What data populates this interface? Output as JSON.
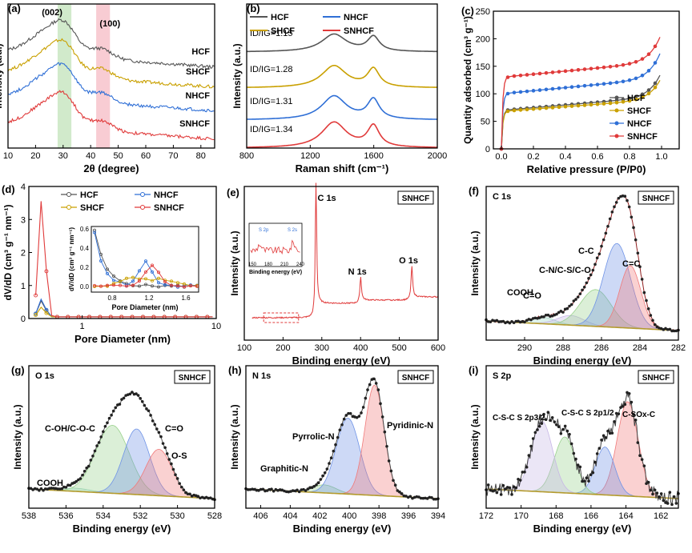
{
  "colors": {
    "HCF": "#555555",
    "NHCF": "#2f6fd6",
    "SHCF": "#c9a000",
    "SNHCF": "#e03a3a",
    "green": "#98d18b",
    "pink": "#f19aa8",
    "axis": "#000000"
  },
  "chart_data": [
    {
      "id": "a",
      "type": "line",
      "label": "(a)",
      "xlabel": "2θ (degree)",
      "ylabel": "Intensity (a.u.)",
      "xlim": [
        10,
        85
      ],
      "xticks": [
        "10",
        "20",
        "30",
        "40",
        "50",
        "60",
        "70",
        "80"
      ],
      "series": [
        {
          "name": "HCF"
        },
        {
          "name": "SHCF"
        },
        {
          "name": "NHCF"
        },
        {
          "name": "SNHCF"
        }
      ],
      "annotations": [
        "(002)",
        "(100)"
      ]
    },
    {
      "id": "b",
      "type": "line",
      "label": "(b)",
      "xlabel": "Raman shift (cm⁻¹)",
      "ylabel": "Intensity (a.u.)",
      "xlim": [
        800,
        2000
      ],
      "xticks": [
        "800",
        "1200",
        "1600",
        "2000"
      ],
      "series": [
        {
          "name": "HCF",
          "ratio": "1.15"
        },
        {
          "name": "SHCF",
          "ratio": "1.28"
        },
        {
          "name": "NHCF",
          "ratio": "1.31"
        },
        {
          "name": "SNHCF",
          "ratio": "1.34"
        }
      ],
      "ratio_label": "ID/IG="
    },
    {
      "id": "c",
      "type": "line",
      "label": "(c)",
      "xlabel": "Relative pressure (P/P0)",
      "ylabel": "Quantity adsorbed (cm³ g⁻¹)",
      "xlim": [
        0,
        1
      ],
      "ylim": [
        0,
        250
      ],
      "xticks": [
        "0.0",
        "0.2",
        "0.4",
        "0.6",
        "0.8",
        "1.0"
      ],
      "yticks": [
        "0",
        "50",
        "100",
        "150",
        "200",
        "250"
      ],
      "series": [
        {
          "name": "HCF",
          "plateau": 70,
          "end": 140
        },
        {
          "name": "SHCF",
          "plateau": 68,
          "end": 130
        },
        {
          "name": "NHCF",
          "plateau": 100,
          "end": 180
        },
        {
          "name": "SNHCF",
          "plateau": 130,
          "end": 210
        }
      ]
    },
    {
      "id": "d",
      "type": "line",
      "label": "(d)",
      "xlabel": "Pore Diameter (nm)",
      "ylabel": "dV/dD (cm³ g⁻¹ nm⁻¹)",
      "xscale": "log",
      "ylim": [
        0,
        4
      ],
      "xticks": [
        "1",
        "10"
      ],
      "yticks": [
        "0",
        "1",
        "2",
        "3",
        "4"
      ],
      "series": [
        {
          "name": "HCF"
        },
        {
          "name": "NHCF"
        },
        {
          "name": "SHCF"
        },
        {
          "name": "SNHCF",
          "peak": 3.6
        }
      ],
      "inset": {
        "xlabel": "Pore Diameter (nm)",
        "ylabel": "dV/dD (cm³ g⁻¹ nm⁻¹)",
        "xticks": [
          "0.8",
          "1.2",
          "1.6"
        ],
        "yticks": [
          "0.0",
          "0.2",
          "0.4",
          "0.6"
        ]
      }
    },
    {
      "id": "e",
      "type": "line",
      "label": "(e)",
      "tag": "SNHCF",
      "xlabel": "Binding energy (eV)",
      "ylabel": "Intensity (a.u.)",
      "xlim": [
        100,
        600
      ],
      "xticks": [
        "100",
        "200",
        "300",
        "400",
        "500",
        "600"
      ],
      "peaks": [
        {
          "name": "C 1s",
          "x": 284.8
        },
        {
          "name": "N 1s",
          "x": 400
        },
        {
          "name": "O 1s",
          "x": 532
        }
      ],
      "inset": {
        "xlabel": "Binding energy (eV)",
        "xticks": [
          "150",
          "180",
          "210",
          "240"
        ],
        "labels": [
          "S 2p",
          "S 2s"
        ]
      }
    },
    {
      "id": "f",
      "type": "line",
      "label": "(f)",
      "title": "C 1s",
      "tag": "SNHCF",
      "xlabel": "Binding energy (eV)",
      "ylabel": "Intensity (a.u.)",
      "xlim": [
        292,
        282
      ],
      "xticks": [
        "290",
        "288",
        "286",
        "284",
        "282"
      ],
      "components": [
        {
          "name": "COOH"
        },
        {
          "name": "C=O"
        },
        {
          "name": "C-N/C-S/C-O"
        },
        {
          "name": "C-C"
        },
        {
          "name": "C=C"
        }
      ]
    },
    {
      "id": "g",
      "type": "line",
      "label": "(g)",
      "title": "O 1s",
      "tag": "SNHCF",
      "xlabel": "Binding energy (eV)",
      "ylabel": "Intensity (a.u.)",
      "xlim": [
        538,
        528
      ],
      "xticks": [
        "538",
        "536",
        "534",
        "532",
        "530",
        "528"
      ],
      "components": [
        {
          "name": "COOH"
        },
        {
          "name": "C-OH/C-O-C"
        },
        {
          "name": "C=O"
        },
        {
          "name": "O-S"
        }
      ]
    },
    {
      "id": "h",
      "type": "line",
      "label": "(h)",
      "title": "N 1s",
      "tag": "SNHCF",
      "xlabel": "Binding energy (eV)",
      "ylabel": "Intensity (a.u.)",
      "xlim": [
        407,
        394
      ],
      "xticks": [
        "406",
        "404",
        "402",
        "400",
        "398",
        "396",
        "394"
      ],
      "components": [
        {
          "name": "Graphitic-N"
        },
        {
          "name": "Pyrrolic-N"
        },
        {
          "name": "Pyridinic-N"
        }
      ]
    },
    {
      "id": "i",
      "type": "line",
      "label": "(i)",
      "title": "S 2p",
      "tag": "SNHCF",
      "xlabel": "Binding energy (eV)",
      "ylabel": "Intensity (a.u.)",
      "xlim": [
        161,
        172
      ],
      "xticks": [
        "162",
        "164",
        "166",
        "168",
        "170",
        "172"
      ],
      "components": [
        {
          "name": "C-S-C S 2p3/2"
        },
        {
          "name": "C-S-C S 2p1/2"
        },
        {
          "name": "C-SOx-C"
        }
      ]
    }
  ]
}
